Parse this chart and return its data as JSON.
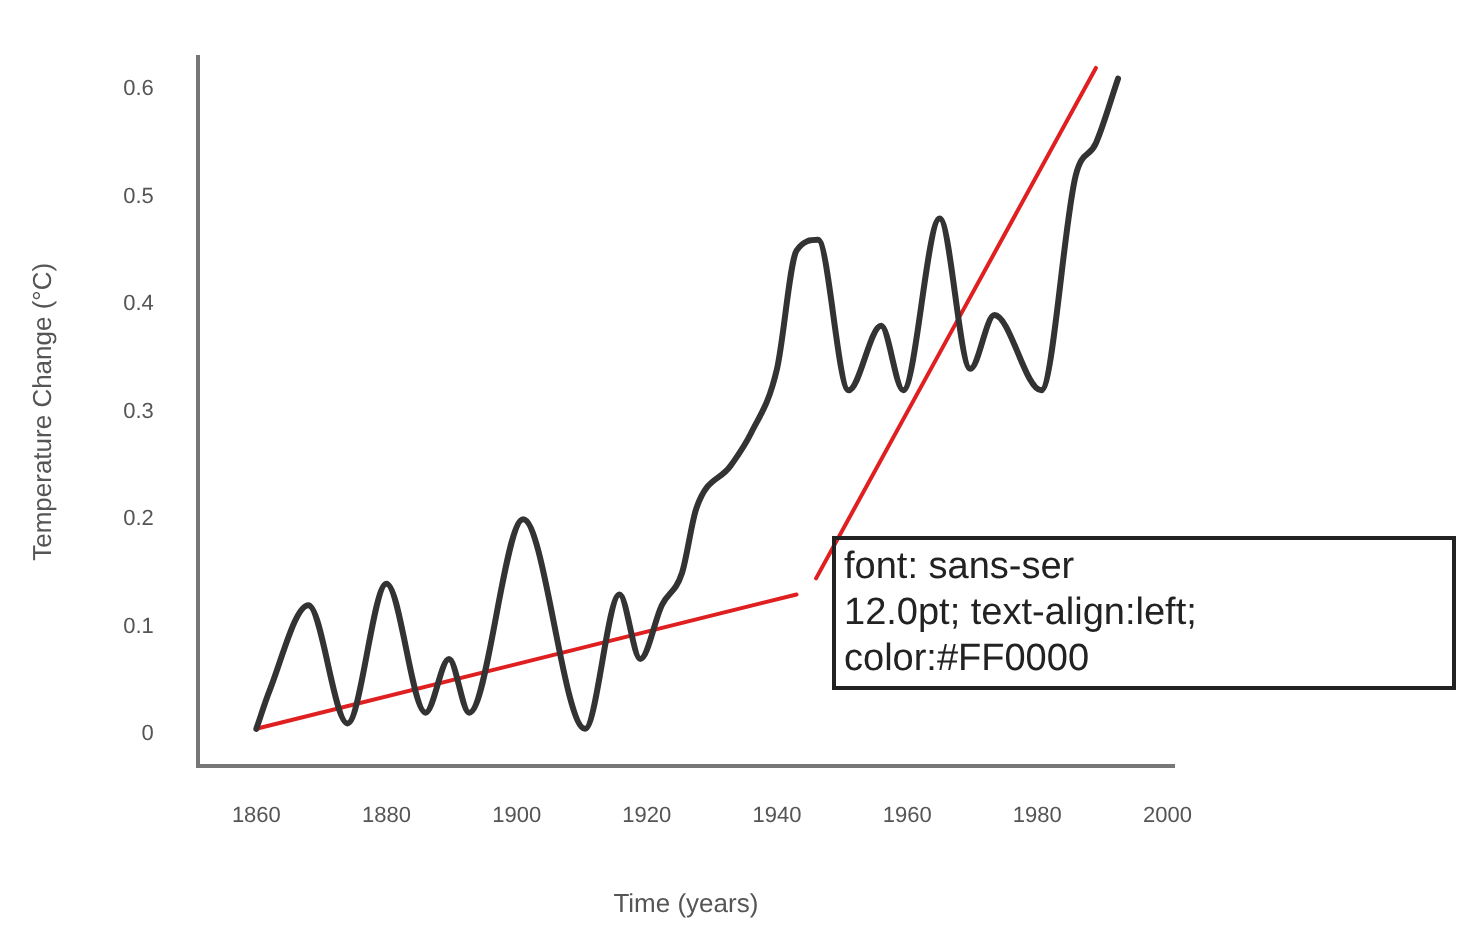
{
  "chart_data": {
    "type": "line",
    "xlabel": "Time (years)",
    "ylabel": "Temperature Change (°C)",
    "xlim": [
      1851,
      2001
    ],
    "xticks": [
      1860,
      1880,
      1900,
      1920,
      1940,
      1960,
      1980,
      2000
    ],
    "ylim": [
      -0.03,
      0.63
    ],
    "yticks": [
      0,
      0.1,
      0.2,
      0.3,
      0.4,
      0.5,
      0.6
    ],
    "grid": false,
    "legend": false,
    "marker": "none",
    "line_style": "solid",
    "series": [
      {
        "color": "#333333",
        "x": [
          1860,
          1862,
          1868,
          1874,
          1880,
          1886,
          1889.6,
          1892.7,
          1901,
          1910.5,
          1915.8,
          1919,
          1922.3,
          1925.4,
          1927.6,
          1932.9,
          1936,
          1940,
          1943,
          1946.3,
          1951,
          1956,
          1959.4,
          1965,
          1969.7,
          1973.4,
          1980.6,
          1985.9,
          1989,
          1992.4
        ],
        "values": [
          0.005,
          0.04,
          0.12,
          0.01,
          0.14,
          0.02,
          0.07,
          0.02,
          0.2,
          0.005,
          0.13,
          0.07,
          0.12,
          0.15,
          0.21,
          0.25,
          0.28,
          0.34,
          0.45,
          0.46,
          0.32,
          0.38,
          0.32,
          0.48,
          0.34,
          0.39,
          0.32,
          0.52,
          0.55,
          0.61
        ]
      },
      {
        "color": "#e02020",
        "x": [
          1860,
          1943
        ],
        "values": [
          0.005,
          0.13
        ]
      },
      {
        "color": "#e02020",
        "x": [
          1946,
          1989
        ],
        "values": [
          0.145,
          0.62
        ]
      }
    ],
    "annotations": [
      "font: sans-ser\n12.0pt; text-align:left;\ncolor:#FF0000"
    ]
  }
}
